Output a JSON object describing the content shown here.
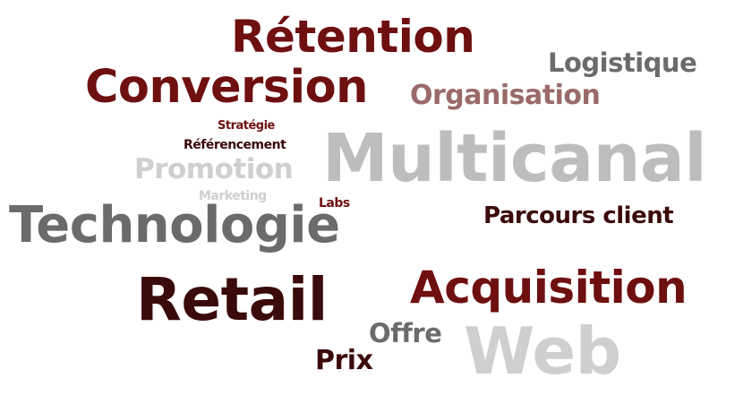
{
  "words": {
    "retention": "Rétention",
    "logistique": "Logistique",
    "conversion": "Conversion",
    "organisation": "Organisation",
    "strategie": "Stratégie",
    "multicanal": "Multicanal",
    "referencement": "Référencement",
    "promotion": "Promotion",
    "marketing": "Marketing",
    "labs": "Labs",
    "technologie": "Technologie",
    "parcours_client": "Parcours client",
    "acquisition": "Acquisition",
    "retail": "Retail",
    "offre": "Offre",
    "web": "Web",
    "prix": "Prix"
  },
  "colors": {
    "dark": "#3b0a0a",
    "maroon": "#6e0f10",
    "rose": "#9a6a6a",
    "grey": "#6b6b6b",
    "silver": "#bdbdbd",
    "pale": "#cfcfcf"
  }
}
